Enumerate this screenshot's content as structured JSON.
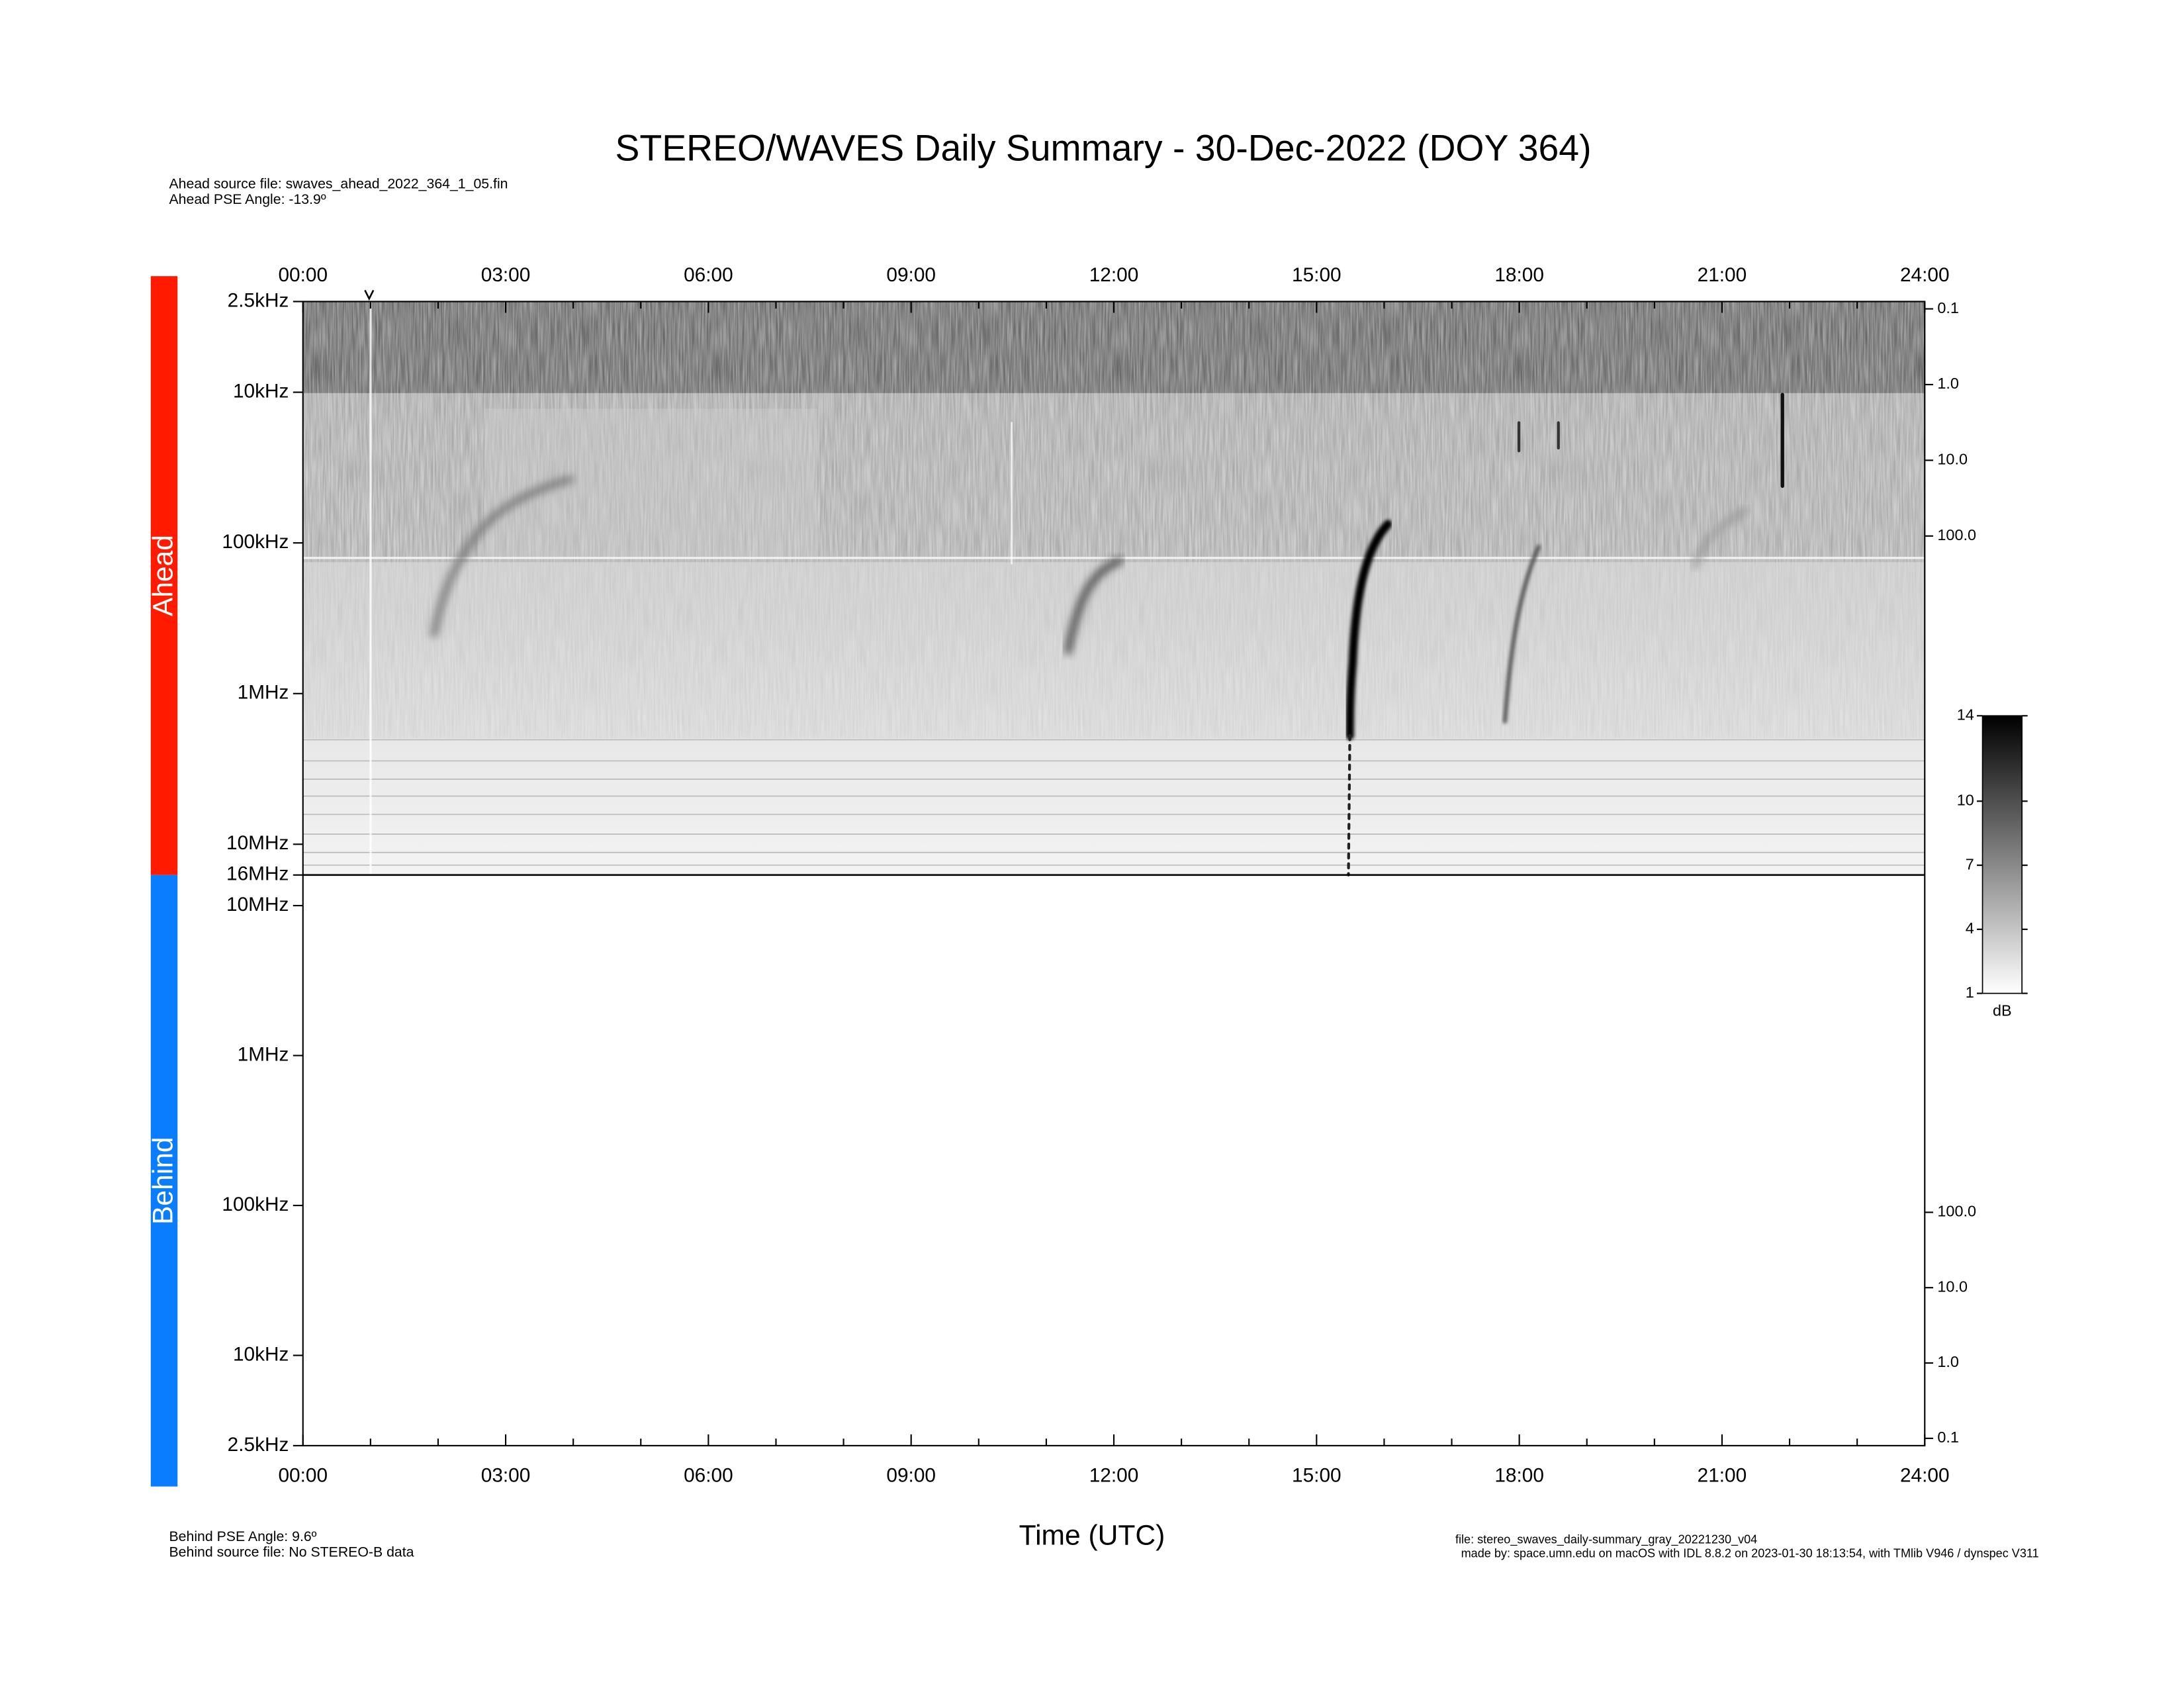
{
  "title": "STEREO/WAVES Daily Summary - 30-Dec-2022 (DOY 364)",
  "ahead_source": "Ahead source file: swaves_ahead_2022_364_1_05.fin",
  "ahead_pse": "Ahead PSE Angle:  -13.9º",
  "behind_pse": "Behind PSE Angle:    9.6º",
  "behind_source": "Behind source file: No STEREO-B data",
  "xlabel": "Time (UTC)",
  "file": "file: stereo_swaves_daily-summary_gray_20221230_v04",
  "made_by": "made by: space.umn.edu on macOS with IDL 8.8.2 on 2023-01-30 18:13:54, with TMlib V946 / dynspec V311",
  "chart_data": [
    {
      "type": "spectrogram",
      "panel": "Ahead",
      "color": "#ff1a00",
      "xlim": [
        0,
        24
      ],
      "xticks": [
        {
          "value": 0,
          "label": "00:00"
        },
        {
          "value": 3,
          "label": "03:00"
        },
        {
          "value": 6,
          "label": "06:00"
        },
        {
          "value": 9,
          "label": "09:00"
        },
        {
          "value": 12,
          "label": "12:00"
        },
        {
          "value": 15,
          "label": "15:00"
        },
        {
          "value": 18,
          "label": "18:00"
        },
        {
          "value": 21,
          "label": "21:00"
        },
        {
          "value": 24,
          "label": "24:00"
        }
      ],
      "xminorticks": [
        1,
        2,
        4,
        5,
        7,
        8,
        10,
        11,
        13,
        14,
        16,
        17,
        19,
        20,
        22,
        23
      ],
      "ylim": [
        2.5,
        16000
      ],
      "ylog": true,
      "y_inverted": true,
      "yticks": [
        {
          "value": 2.5,
          "label": "2.5kHz"
        },
        {
          "value": 10,
          "label": "10kHz"
        },
        {
          "value": 100,
          "label": "100kHz"
        },
        {
          "value": 1000,
          "label": "1MHz"
        },
        {
          "value": 10000,
          "label": "10MHz"
        },
        {
          "value": 16000,
          "label": "16MHz"
        }
      ],
      "y2lim": [
        0.08,
        3000000
      ],
      "y2ticks": [
        0.1,
        {
          "value": 1,
          "label": "1.0"
        },
        {
          "value": 10,
          "label": "10.0"
        },
        {
          "value": 100,
          "label": "100.0"
        }
      ]
    },
    {
      "type": "spectrogram",
      "panel": "Behind",
      "color": "#0a7dff",
      "xlim": [
        0,
        24
      ],
      "xticks": [
        {
          "value": 0,
          "label": "00:00"
        },
        {
          "value": 3,
          "label": "03:00"
        },
        {
          "value": 6,
          "label": "06:00"
        },
        {
          "value": 9,
          "label": "09:00"
        },
        {
          "value": 12,
          "label": "12:00"
        },
        {
          "value": 15,
          "label": "15:00"
        },
        {
          "value": 18,
          "label": "18:00"
        },
        {
          "value": 21,
          "label": "21:00"
        },
        {
          "value": 24,
          "label": "24:00"
        }
      ],
      "xminorticks": [
        1,
        2,
        4,
        5,
        7,
        8,
        10,
        11,
        13,
        14,
        16,
        17,
        19,
        20,
        22,
        23
      ],
      "ylim": [
        2.5,
        16000
      ],
      "ylog": true,
      "y_inverted": false,
      "yticks": [
        {
          "value": 2.5,
          "label": "2.5kHz"
        },
        {
          "value": 10,
          "label": "10kHz"
        },
        {
          "value": 100,
          "label": "100kHz"
        },
        {
          "value": 1000,
          "label": "1MHz"
        },
        {
          "value": 10000,
          "label": "10MHz"
        }
      ],
      "y2lim": [
        0.08,
        3000000
      ],
      "y2ticks": [
        0.1,
        {
          "value": 1,
          "label": "1.0"
        },
        {
          "value": 10,
          "label": "10.0"
        },
        {
          "value": 100,
          "label": "100.0"
        }
      ]
    }
  ],
  "colorbar": {
    "clim": [
      1,
      14
    ],
    "ticks": [
      1,
      4,
      7,
      10,
      14
    ],
    "label": "dB"
  }
}
